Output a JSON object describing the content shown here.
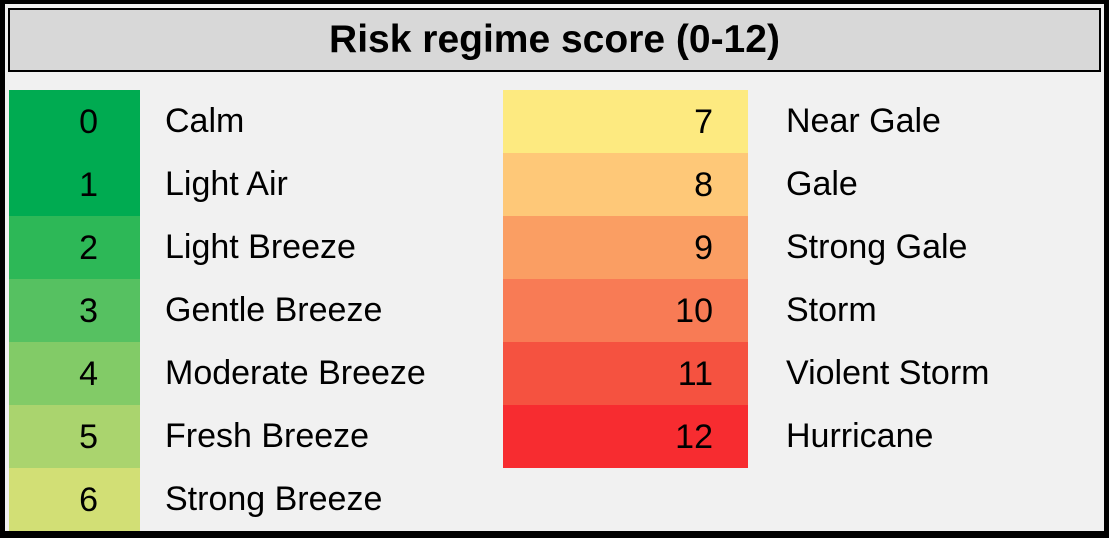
{
  "title": "Risk regime score (0-12)",
  "colors": {
    "frame": "#000000",
    "background": "#f1f1f1",
    "title_bar_bg": "#d8d8d8",
    "title_bar_border": "#000000",
    "text": "#000000"
  },
  "scale": {
    "left": [
      {
        "score": "0",
        "label": "Calm",
        "color": "#00ab51"
      },
      {
        "score": "1",
        "label": "Light Air",
        "color": "#00ab51"
      },
      {
        "score": "2",
        "label": "Light Breeze",
        "color": "#2db857"
      },
      {
        "score": "3",
        "label": "Gentle Breeze",
        "color": "#56c161"
      },
      {
        "score": "4",
        "label": "Moderate Breeze",
        "color": "#82cb67"
      },
      {
        "score": "5",
        "label": "Fresh Breeze",
        "color": "#aad46e"
      },
      {
        "score": "6",
        "label": "Strong Breeze",
        "color": "#d2df75"
      }
    ],
    "right": [
      {
        "score": "7",
        "label": "Near Gale",
        "color": "#fdea80"
      },
      {
        "score": "8",
        "label": "Gale",
        "color": "#fec878"
      },
      {
        "score": "9",
        "label": "Strong Gale",
        "color": "#fa9e63"
      },
      {
        "score": "10",
        "label": "Storm",
        "color": "#f87b55"
      },
      {
        "score": "11",
        "label": "Violent Storm",
        "color": "#f55240"
      },
      {
        "score": "12",
        "label": "Hurricane",
        "color": "#f72c30"
      }
    ]
  },
  "chart_data": {
    "type": "table",
    "title": "Risk regime score (0-12)",
    "columns": [
      "score",
      "label",
      "color"
    ],
    "rows": [
      [
        0,
        "Calm",
        "#00ab51"
      ],
      [
        1,
        "Light Air",
        "#00ab51"
      ],
      [
        2,
        "Light Breeze",
        "#2db857"
      ],
      [
        3,
        "Gentle Breeze",
        "#56c161"
      ],
      [
        4,
        "Moderate Breeze",
        "#82cb67"
      ],
      [
        5,
        "Fresh Breeze",
        "#aad46e"
      ],
      [
        6,
        "Strong Breeze",
        "#d2df75"
      ],
      [
        7,
        "Near Gale",
        "#fdea80"
      ],
      [
        8,
        "Gale",
        "#fec878"
      ],
      [
        9,
        "Strong Gale",
        "#fa9e63"
      ],
      [
        10,
        "Storm",
        "#f87b55"
      ],
      [
        11,
        "Violent Storm",
        "#f55240"
      ],
      [
        12,
        "Hurricane",
        "#f72c30"
      ]
    ],
    "layout": "two-column legend; scores 0-6 in left column (greens), 7-12 in right column (yellow to red); score number inside colored swatch, label on plain background to the right"
  }
}
